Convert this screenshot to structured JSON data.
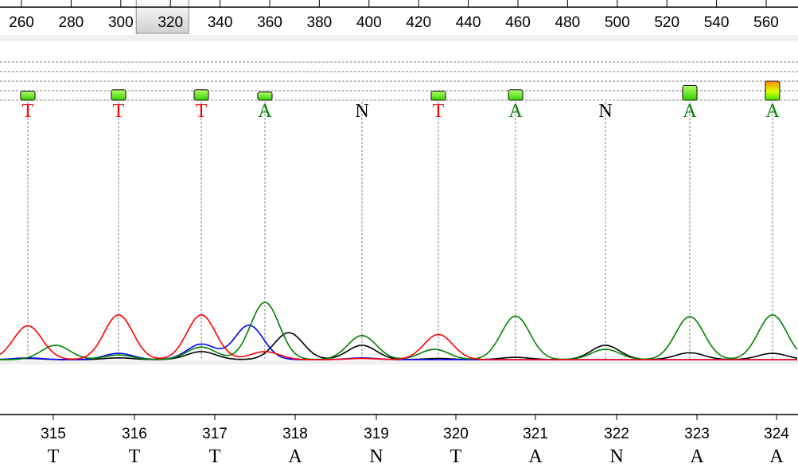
{
  "ruler": {
    "ticks": [
      "260",
      "280",
      "300",
      "320",
      "340",
      "360",
      "380",
      "400",
      "420",
      "440",
      "460",
      "480",
      "500",
      "520",
      "540",
      "560"
    ],
    "selected": "320"
  },
  "colors": {
    "A": "#008000",
    "C": "#0000ff",
    "G": "#000000",
    "T": "#ff0000",
    "N": "#000000",
    "grid": "#808080",
    "panel": "#f0f0f0"
  },
  "chart_data": {
    "type": "line",
    "peaks": [
      {
        "pos": "315",
        "call": "T",
        "quality": 0.15,
        "A": 0.25,
        "C": 0.03,
        "G": 0.02,
        "T": 0.59
      },
      {
        "pos": "316",
        "call": "T",
        "quality": 0.2,
        "A": 0.08,
        "C": 0.11,
        "G": 0.03,
        "T": 0.78
      },
      {
        "pos": "317",
        "call": "T",
        "quality": 0.2,
        "A": 0.22,
        "C": 0.27,
        "G": 0.14,
        "T": 0.78
      },
      {
        "pos": "318",
        "call": "A",
        "quality": 0.12,
        "A": 1.0,
        "C": 0.6,
        "G": 0.47,
        "T": 0.14
      },
      {
        "pos": "319",
        "call": "N",
        "quality": 0.0,
        "A": 0.42,
        "C": 0.03,
        "G": 0.25,
        "T": 0.02
      },
      {
        "pos": "320",
        "call": "T",
        "quality": 0.15,
        "A": 0.18,
        "C": 0.0,
        "G": 0.02,
        "T": 0.44
      },
      {
        "pos": "321",
        "call": "A",
        "quality": 0.2,
        "A": 0.76,
        "C": 0.0,
        "G": 0.04,
        "T": 0.0
      },
      {
        "pos": "322",
        "call": "N",
        "quality": 0.0,
        "A": 0.18,
        "C": 0.0,
        "G": 0.25,
        "T": 0.0
      },
      {
        "pos": "323",
        "call": "A",
        "quality": 0.35,
        "A": 0.75,
        "C": 0.0,
        "G": 0.12,
        "T": 0.0
      },
      {
        "pos": "324",
        "call": "A",
        "quality": 0.5,
        "A": 0.78,
        "C": 0.0,
        "G": 0.11,
        "T": 0.0
      }
    ]
  }
}
